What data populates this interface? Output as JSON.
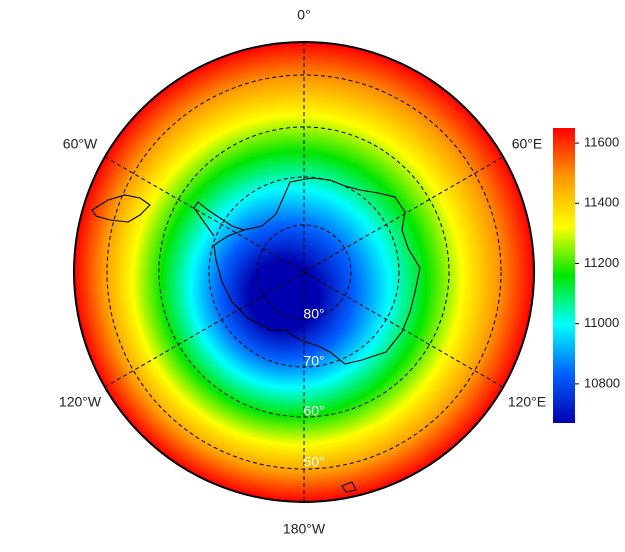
{
  "map": {
    "meridian_labels": [
      "0°",
      "60°E",
      "120°E",
      "180°W",
      "120°W",
      "60°W"
    ],
    "latitude_labels": [
      "80°",
      "70°",
      "60°",
      "50°"
    ]
  },
  "colorbar": {
    "lim": [
      10670,
      11650
    ],
    "ticks": [
      10800,
      11000,
      11200,
      11400,
      11600
    ],
    "colors": [
      "#0000b0",
      "#0060ff",
      "#00ffff",
      "#00e600",
      "#ffff00",
      "#ff9900",
      "#ff0000"
    ]
  }
}
